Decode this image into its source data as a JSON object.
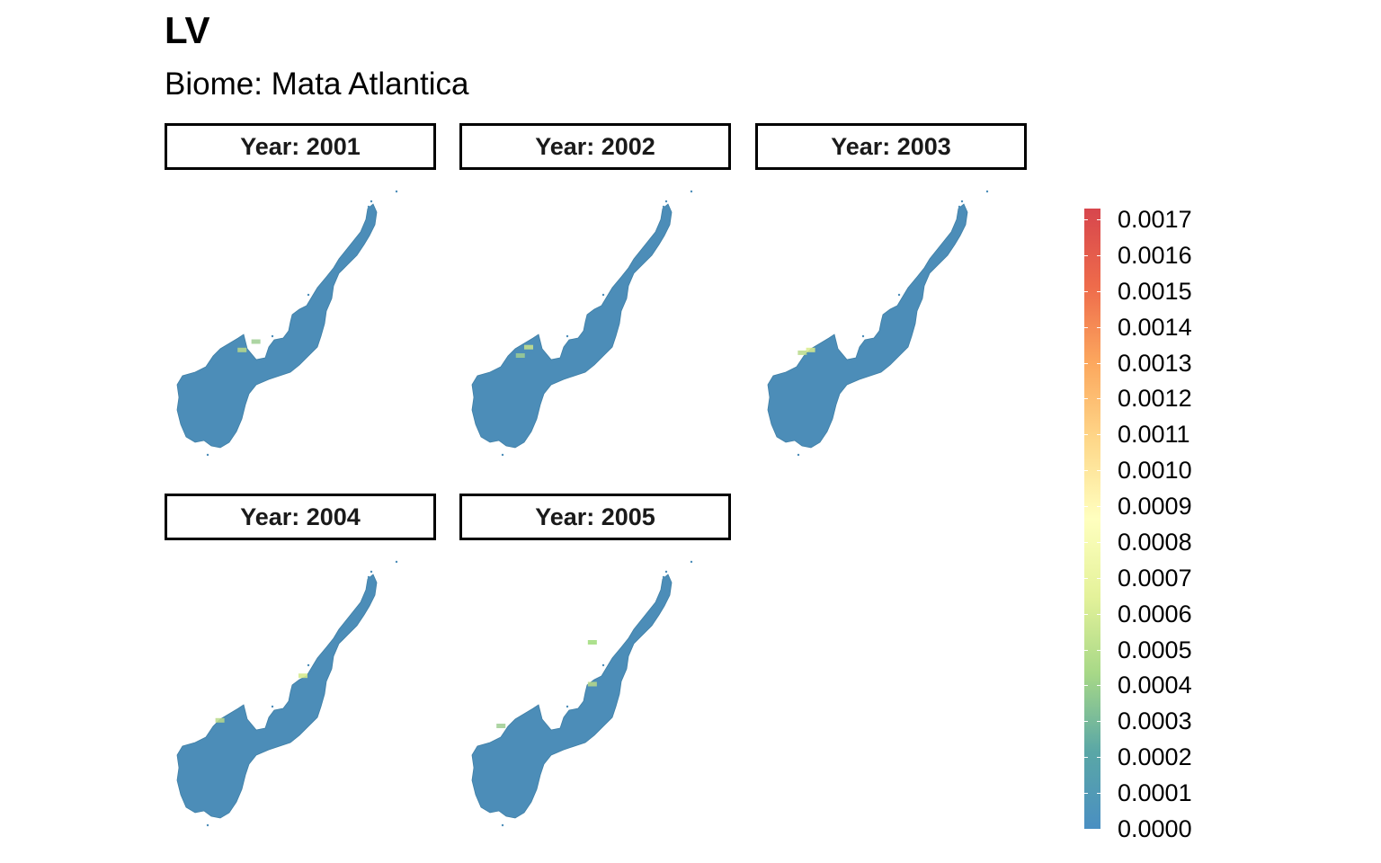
{
  "title": "LV",
  "subtitle": "Biome: Mata Atlantica",
  "panels": [
    {
      "label": "Year: 2001",
      "hotspots": [
        [
          0.28,
          0.58,
          "#b8d98a"
        ],
        [
          0.33,
          0.55,
          "#9fce93"
        ]
      ]
    },
    {
      "label": "Year: 2002",
      "hotspots": [
        [
          0.25,
          0.57,
          "#c9e38a"
        ],
        [
          0.22,
          0.6,
          "#9fce93"
        ]
      ]
    },
    {
      "label": "Year: 2003",
      "hotspots": [
        [
          0.2,
          0.58,
          "#d9ec8c"
        ],
        [
          0.17,
          0.59,
          "#b8d98a"
        ]
      ]
    },
    {
      "label": "Year: 2004",
      "hotspots": [
        [
          0.2,
          0.58,
          "#b8d98a"
        ],
        [
          0.5,
          0.42,
          "#d4e98a"
        ]
      ]
    },
    {
      "label": "Year: 2005",
      "hotspots": [
        [
          0.48,
          0.3,
          "#9fdc7a"
        ],
        [
          0.48,
          0.45,
          "#b8d98a"
        ],
        [
          0.15,
          0.6,
          "#9fce93"
        ]
      ]
    }
  ],
  "legend": {
    "min": 0.0,
    "max": 0.0017,
    "ticks": [
      "0.0017",
      "0.0016",
      "0.0015",
      "0.0014",
      "0.0013",
      "0.0012",
      "0.0011",
      "0.0010",
      "0.0009",
      "0.0008",
      "0.0007",
      "0.0006",
      "0.0005",
      "0.0004",
      "0.0003",
      "0.0002",
      "0.0001",
      "0.0000"
    ],
    "colors": [
      "#d7464d",
      "#ee6b4b",
      "#fca85e",
      "#fed88a",
      "#ffffbf",
      "#e4f29a",
      "#a7d887",
      "#5aa7a6",
      "#4a8fc2"
    ]
  },
  "map_fill": "#4c8db8"
}
